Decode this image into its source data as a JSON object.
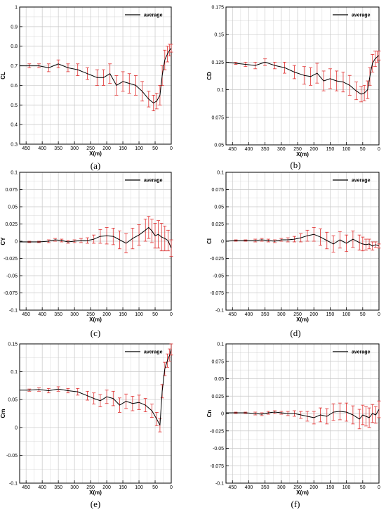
{
  "chart_data": [
    {
      "type": "line",
      "panel": "(a)",
      "xlabel": "X(m)",
      "ylabel": "CL",
      "xlim": [
        470,
        0
      ],
      "ylim": [
        0.3,
        1.0
      ],
      "xticks": [
        450,
        400,
        350,
        300,
        250,
        200,
        150,
        100,
        50,
        0
      ],
      "yticks": [
        0.3,
        0.4,
        0.5,
        0.6,
        0.7,
        0.8,
        0.9,
        1
      ],
      "ytick_labels": [
        "0.3",
        "0.4",
        "0.5",
        "0.6",
        "0.7",
        "0.8",
        "0.9",
        "1"
      ],
      "grid": true,
      "legend": "top-right",
      "series": [
        {
          "name": "average",
          "x": [
            470,
            440,
            410,
            380,
            350,
            320,
            290,
            260,
            230,
            210,
            190,
            170,
            150,
            130,
            110,
            90,
            70,
            55,
            45,
            35,
            28,
            20,
            12,
            5,
            0
          ],
          "y": [
            0.7,
            0.7,
            0.7,
            0.69,
            0.71,
            0.69,
            0.68,
            0.66,
            0.64,
            0.64,
            0.66,
            0.6,
            0.62,
            0.61,
            0.6,
            0.57,
            0.53,
            0.51,
            0.52,
            0.55,
            0.65,
            0.73,
            0.76,
            0.78,
            0.79
          ],
          "error": [
            0.0,
            0.01,
            0.01,
            0.02,
            0.02,
            0.02,
            0.03,
            0.03,
            0.04,
            0.04,
            0.05,
            0.05,
            0.05,
            0.05,
            0.05,
            0.05,
            0.04,
            0.04,
            0.04,
            0.05,
            0.05,
            0.05,
            0.04,
            0.03,
            0.02
          ]
        }
      ]
    },
    {
      "type": "line",
      "panel": "(b)",
      "xlabel": "X(m)",
      "ylabel": "CD",
      "xlim": [
        470,
        0
      ],
      "ylim": [
        0.05,
        0.175
      ],
      "xticks": [
        450,
        400,
        350,
        300,
        250,
        200,
        150,
        100,
        50,
        0
      ],
      "yticks": [
        0.05,
        0.075,
        0.1,
        0.125,
        0.15,
        0.175
      ],
      "ytick_labels": [
        "0.05",
        "0.075",
        "0.1",
        "0.125",
        "0.15",
        "0.175"
      ],
      "grid": true,
      "legend": "top-right",
      "series": [
        {
          "name": "average",
          "x": [
            470,
            440,
            410,
            380,
            350,
            320,
            290,
            260,
            230,
            210,
            190,
            170,
            150,
            130,
            110,
            90,
            70,
            55,
            45,
            35,
            28,
            20,
            12,
            5,
            0
          ],
          "y": [
            0.125,
            0.124,
            0.123,
            0.122,
            0.125,
            0.122,
            0.12,
            0.116,
            0.113,
            0.112,
            0.115,
            0.108,
            0.11,
            0.108,
            0.107,
            0.104,
            0.099,
            0.096,
            0.097,
            0.1,
            0.112,
            0.124,
            0.128,
            0.13,
            0.131
          ],
          "error": [
            0.0,
            0.001,
            0.002,
            0.003,
            0.003,
            0.003,
            0.005,
            0.006,
            0.008,
            0.008,
            0.009,
            0.009,
            0.009,
            0.009,
            0.009,
            0.009,
            0.008,
            0.007,
            0.007,
            0.008,
            0.008,
            0.008,
            0.007,
            0.005,
            0.004
          ]
        }
      ]
    },
    {
      "type": "line",
      "panel": "(c)",
      "xlabel": "X(m)",
      "ylabel": "CY",
      "xlim": [
        470,
        0
      ],
      "ylim": [
        -0.1,
        0.1
      ],
      "xticks": [
        450,
        400,
        350,
        300,
        250,
        200,
        150,
        100,
        50,
        0
      ],
      "yticks": [
        -0.1,
        -0.075,
        -0.05,
        -0.025,
        0,
        0.025,
        0.05,
        0.075,
        0.1
      ],
      "ytick_labels": [
        "-0.1",
        "-0.075",
        "-0.05",
        "-0.025",
        "0",
        "0.025",
        "0.05",
        "0.075",
        "0.1"
      ],
      "grid": true,
      "legend": "top-right",
      "series": [
        {
          "name": "average",
          "x": [
            470,
            440,
            410,
            380,
            360,
            340,
            320,
            300,
            280,
            260,
            240,
            220,
            200,
            180,
            160,
            140,
            120,
            100,
            80,
            70,
            60,
            50,
            40,
            30,
            20,
            10,
            0
          ],
          "y": [
            -0.001,
            -0.001,
            -0.001,
            0.0,
            0.002,
            0.001,
            -0.001,
            0.0,
            0.001,
            0.001,
            0.003,
            0.007,
            0.008,
            0.007,
            0.002,
            -0.003,
            0.004,
            0.009,
            0.016,
            0.02,
            0.015,
            0.008,
            0.01,
            0.006,
            0.004,
            0.001,
            -0.01
          ],
          "error": [
            0.0,
            0.001,
            0.001,
            0.002,
            0.002,
            0.002,
            0.002,
            0.002,
            0.003,
            0.004,
            0.006,
            0.01,
            0.012,
            0.012,
            0.013,
            0.014,
            0.015,
            0.015,
            0.016,
            0.016,
            0.017,
            0.018,
            0.02,
            0.02,
            0.018,
            0.015,
            0.012
          ]
        }
      ]
    },
    {
      "type": "line",
      "panel": "(d)",
      "xlabel": "X(m)",
      "ylabel": "Cl",
      "xlim": [
        470,
        0
      ],
      "ylim": [
        -0.1,
        0.1
      ],
      "xticks": [
        450,
        400,
        350,
        300,
        250,
        200,
        150,
        100,
        50,
        0
      ],
      "yticks": [
        -0.1,
        -0.075,
        -0.05,
        -0.025,
        0,
        0.025,
        0.05,
        0.075,
        0.1
      ],
      "ytick_labels": [
        "-0.1",
        "-0.075",
        "-0.05",
        "-0.025",
        "0",
        "0.025",
        "0.05",
        "0.075",
        "0.1"
      ],
      "grid": true,
      "legend": "top-right",
      "series": [
        {
          "name": "average",
          "x": [
            470,
            440,
            410,
            380,
            360,
            340,
            320,
            300,
            280,
            260,
            240,
            220,
            200,
            180,
            160,
            140,
            120,
            100,
            80,
            60,
            50,
            40,
            30,
            20,
            10,
            0
          ],
          "y": [
            0.0,
            0.001,
            0.001,
            0.001,
            0.002,
            0.001,
            0.0,
            0.002,
            0.002,
            0.003,
            0.005,
            0.008,
            0.01,
            0.006,
            0.001,
            -0.004,
            0.002,
            -0.003,
            0.003,
            -0.002,
            -0.004,
            -0.005,
            -0.004,
            -0.007,
            -0.005,
            -0.007
          ],
          "error": [
            0.0,
            0.001,
            0.001,
            0.002,
            0.002,
            0.002,
            0.002,
            0.002,
            0.003,
            0.004,
            0.006,
            0.008,
            0.01,
            0.012,
            0.012,
            0.012,
            0.012,
            0.012,
            0.012,
            0.011,
            0.01,
            0.008,
            0.007,
            0.006,
            0.004,
            0.003
          ]
        }
      ]
    },
    {
      "type": "line",
      "panel": "(e)",
      "xlabel": "X(m)",
      "ylabel": "Cm",
      "xlim": [
        470,
        0
      ],
      "ylim": [
        -0.1,
        0.15
      ],
      "xticks": [
        450,
        400,
        350,
        300,
        250,
        200,
        150,
        100,
        50,
        0
      ],
      "yticks": [
        -0.1,
        -0.05,
        0,
        0.05,
        0.1,
        0.15
      ],
      "ytick_labels": [
        "-0.1",
        "-0.05",
        "0",
        "0.05",
        "0.1",
        "0.15"
      ],
      "grid": true,
      "legend": "top-right",
      "series": [
        {
          "name": "average",
          "x": [
            470,
            440,
            410,
            380,
            350,
            320,
            290,
            260,
            240,
            220,
            200,
            180,
            160,
            140,
            120,
            100,
            80,
            60,
            45,
            35,
            28,
            20,
            12,
            5,
            0
          ],
          "y": [
            0.067,
            0.067,
            0.068,
            0.066,
            0.069,
            0.066,
            0.064,
            0.057,
            0.052,
            0.048,
            0.055,
            0.052,
            0.04,
            0.047,
            0.043,
            0.045,
            0.04,
            0.03,
            0.015,
            0.004,
            0.065,
            0.105,
            0.12,
            0.13,
            0.14
          ],
          "error": [
            0.0,
            0.002,
            0.003,
            0.004,
            0.004,
            0.004,
            0.006,
            0.008,
            0.01,
            0.011,
            0.012,
            0.013,
            0.013,
            0.013,
            0.013,
            0.013,
            0.012,
            0.012,
            0.012,
            0.012,
            0.012,
            0.012,
            0.012,
            0.011,
            0.01
          ]
        }
      ]
    },
    {
      "type": "line",
      "panel": "(f)",
      "xlabel": "X(m)",
      "ylabel": "Cn",
      "xlim": [
        470,
        0
      ],
      "ylim": [
        -0.1,
        0.1
      ],
      "xticks": [
        450,
        400,
        350,
        300,
        250,
        200,
        150,
        100,
        50,
        0
      ],
      "yticks": [
        -0.1,
        -0.075,
        -0.05,
        -0.025,
        0,
        0.025,
        0.05,
        0.075,
        0.1
      ],
      "ytick_labels": [
        "-0.1",
        "-0.075",
        "-0.05",
        "-0.025",
        "0",
        "0.025",
        "0.05",
        "0.075",
        "0.1"
      ],
      "grid": true,
      "legend": "top-right",
      "series": [
        {
          "name": "average",
          "x": [
            470,
            440,
            410,
            380,
            360,
            340,
            320,
            300,
            280,
            260,
            240,
            220,
            200,
            180,
            160,
            140,
            120,
            100,
            80,
            60,
            50,
            40,
            30,
            20,
            10,
            0
          ],
          "y": [
            0.001,
            0.001,
            0.001,
            0.0,
            -0.001,
            0.001,
            0.002,
            0.001,
            0.0,
            0.0,
            -0.002,
            -0.004,
            -0.006,
            -0.002,
            -0.004,
            0.002,
            0.003,
            0.002,
            -0.002,
            -0.008,
            -0.002,
            -0.004,
            -0.006,
            0.0,
            -0.002,
            0.006
          ],
          "error": [
            0.0,
            0.001,
            0.001,
            0.002,
            0.002,
            0.002,
            0.002,
            0.002,
            0.003,
            0.004,
            0.005,
            0.007,
            0.009,
            0.01,
            0.011,
            0.012,
            0.012,
            0.013,
            0.013,
            0.014,
            0.014,
            0.014,
            0.014,
            0.013,
            0.012,
            0.012
          ]
        }
      ]
    }
  ],
  "colors": {
    "line": "#000000",
    "error_bar": "#e03030",
    "grid": "#c8c8c8",
    "frame": "#000000"
  }
}
